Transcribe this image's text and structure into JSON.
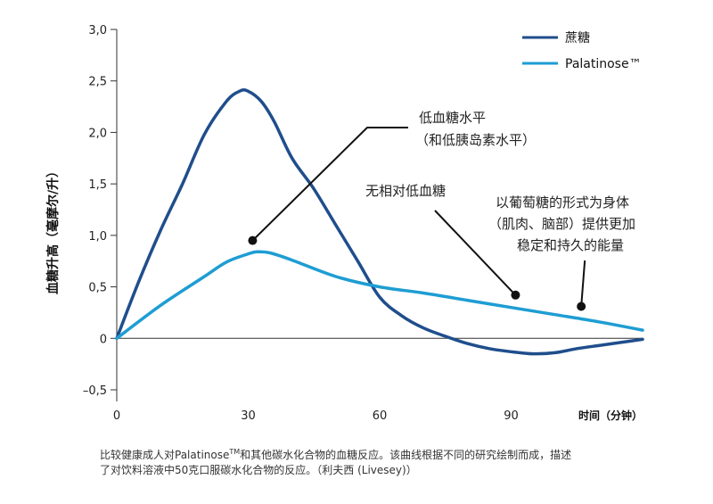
{
  "chart_data": {
    "type": "line",
    "title": "",
    "ylabel": "血糖升高（毫摩尔/升）",
    "xlabel": "时间（分钟）",
    "ylim": [
      -0.5,
      3.0
    ],
    "xlim": [
      0,
      120
    ],
    "y_ticks": [
      "3,0",
      "2,5",
      "2,0",
      "1,5",
      "1,0",
      "0,5",
      "0",
      "–0,5"
    ],
    "y_tick_values": [
      3.0,
      2.5,
      2.0,
      1.5,
      1.0,
      0.5,
      0,
      -0.5
    ],
    "x_ticks": [
      "0",
      "30",
      "60",
      "90"
    ],
    "x_tick_values": [
      0,
      30,
      60,
      90
    ],
    "legend_position": "top-right",
    "series": [
      {
        "name": "蔗糖",
        "color": "#1f4e8c",
        "x": [
          0,
          5,
          10,
          15,
          20,
          25,
          28,
          30,
          33,
          36,
          40,
          45,
          50,
          55,
          60,
          65,
          70,
          75,
          80,
          85,
          90,
          95,
          100,
          105,
          110,
          115,
          120
        ],
        "y": [
          0,
          0.55,
          1.05,
          1.5,
          1.98,
          2.3,
          2.4,
          2.4,
          2.3,
          2.1,
          1.75,
          1.45,
          1.1,
          0.75,
          0.4,
          0.22,
          0.1,
          0.02,
          -0.05,
          -0.1,
          -0.13,
          -0.15,
          -0.14,
          -0.1,
          -0.07,
          -0.04,
          -0.01
        ]
      },
      {
        "name": "Palatinose™",
        "color": "#1e9dd3",
        "x": [
          0,
          10,
          20,
          25,
          30,
          32,
          35,
          40,
          50,
          60,
          70,
          80,
          90,
          100,
          110,
          120
        ],
        "y": [
          0,
          0.32,
          0.6,
          0.74,
          0.82,
          0.84,
          0.83,
          0.76,
          0.6,
          0.5,
          0.44,
          0.37,
          0.3,
          0.23,
          0.16,
          0.08
        ]
      }
    ],
    "annotations": [
      {
        "lines": [
          "低血糖水平",
          "（和低胰岛素水平）"
        ],
        "point": [
          31,
          0.95
        ]
      },
      {
        "lines": [
          "无相对低血糖"
        ],
        "point": [
          91,
          0.42
        ]
      },
      {
        "lines": [
          "以葡萄糖的形式为身体",
          "（肌肉、脑部）提供更加",
          "稳定和持久的能量"
        ],
        "point": [
          106,
          0.31
        ]
      }
    ]
  },
  "caption": {
    "line1_before": "比较健康成人对Palatinose",
    "line1_sup": "TM",
    "line1_after": "和其他碳水化合物的血糖反应。该曲线根据不同的研究绘制而成，描述",
    "line2": "了对饮料溶液中50克口服碳水化合物的反应。（利夫西 (Livesey)）"
  }
}
